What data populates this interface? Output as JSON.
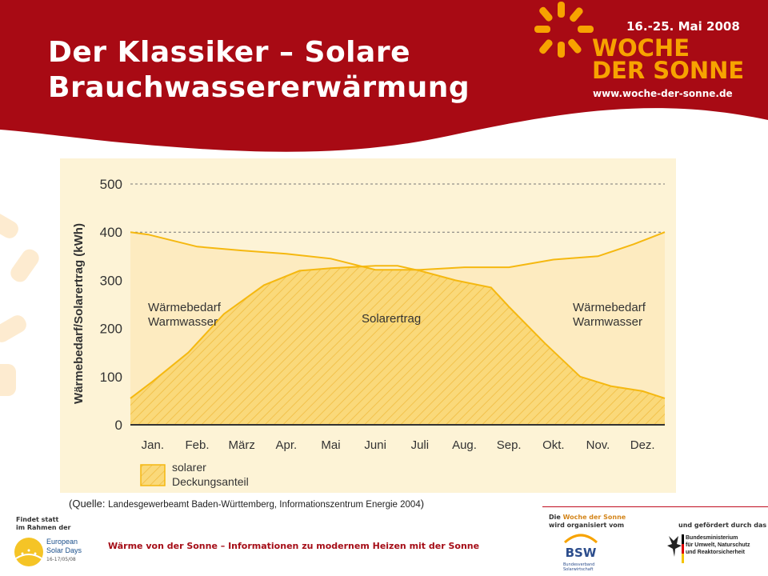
{
  "slide": {
    "title_line1": "Der Klassiker – Solare",
    "title_line2": "Brauchwassererwärmung"
  },
  "event": {
    "dates": "16.-25. Mai 2008",
    "name_line1": "WOCHE",
    "name_line2": "DER SONNE",
    "url": "www.woche-der-sonne.de"
  },
  "colors": {
    "header_red": "#a80a14",
    "accent_orange": "#f7a300",
    "chart_bg": "#fdf3d6",
    "solar_fill": "#fad97a",
    "line": "#f5b810"
  },
  "chart_data": {
    "type": "area",
    "categories": [
      "Jan.",
      "Feb.",
      "März",
      "Apr.",
      "Mai",
      "Juni",
      "Juli",
      "Aug.",
      "Sep.",
      "Okt.",
      "Nov.",
      "Dez."
    ],
    "ylabel": "Wärmebedarf/Solarertrag (kWh)",
    "ylim": [
      0,
      500
    ],
    "yticks": [
      0,
      100,
      200,
      300,
      400,
      500
    ],
    "grid": true,
    "series": [
      {
        "name": "Wärmebedarf Warmwasser",
        "x": [
          0,
          0.4,
          1.5,
          2.5,
          3.5,
          4.5,
          5.5,
          6.5,
          7.5,
          8.5,
          9.5,
          10.5,
          11.3,
          12
        ],
        "values": [
          400,
          395,
          370,
          362,
          355,
          345,
          322,
          322,
          327,
          327,
          343,
          350,
          375,
          400
        ]
      },
      {
        "name": "Solarertrag",
        "x": [
          0,
          0.5,
          1.3,
          2.1,
          3,
          3.8,
          4.5,
          5.5,
          6,
          6.5,
          7.3,
          8.1,
          8.5,
          9.3,
          10.1,
          10.8,
          11.5,
          12
        ],
        "values": [
          55,
          90,
          150,
          230,
          290,
          320,
          325,
          330,
          330,
          320,
          300,
          285,
          245,
          170,
          100,
          80,
          70,
          55
        ]
      }
    ],
    "annotations": {
      "left_label_1": "Wärmebedarf",
      "left_label_2": "Warmwasser",
      "center_label": "Solarertrag",
      "right_label_1": "Wärmebedarf",
      "right_label_2": "Warmwasser"
    },
    "legend": {
      "label_line1": "solarer",
      "label_line2": "Deckungsanteil"
    }
  },
  "source": {
    "prefix": "(Quelle: ",
    "detail": "Landesgewerbeamt Baden-Württemberg, Informationszentrum Energie 2004",
    "suffix": ")"
  },
  "footer": {
    "findet_line1": "Findet statt",
    "findet_line2": "im Rahmen der",
    "esd_line1": "European",
    "esd_line2": "Solar Days",
    "esd_date": "16-17/05/08",
    "tagline": "Wärme von der Sonne – Informationen zu modernem Heizen mit der Sonne",
    "org_prefix": "Die ",
    "org_highlight": "Woche der Sonne",
    "org_line2": "wird organisiert vom",
    "gefoerdert": "und gefördert durch das",
    "bsw_name": "BSW",
    "bsw_label_line1": "Bundesverband",
    "bsw_label_line2": "Solarwirtschaft",
    "bmu_line1": "Bundesministerium",
    "bmu_line2": "für Umwelt, Naturschutz",
    "bmu_line3": "und Reaktorsicherheit"
  }
}
